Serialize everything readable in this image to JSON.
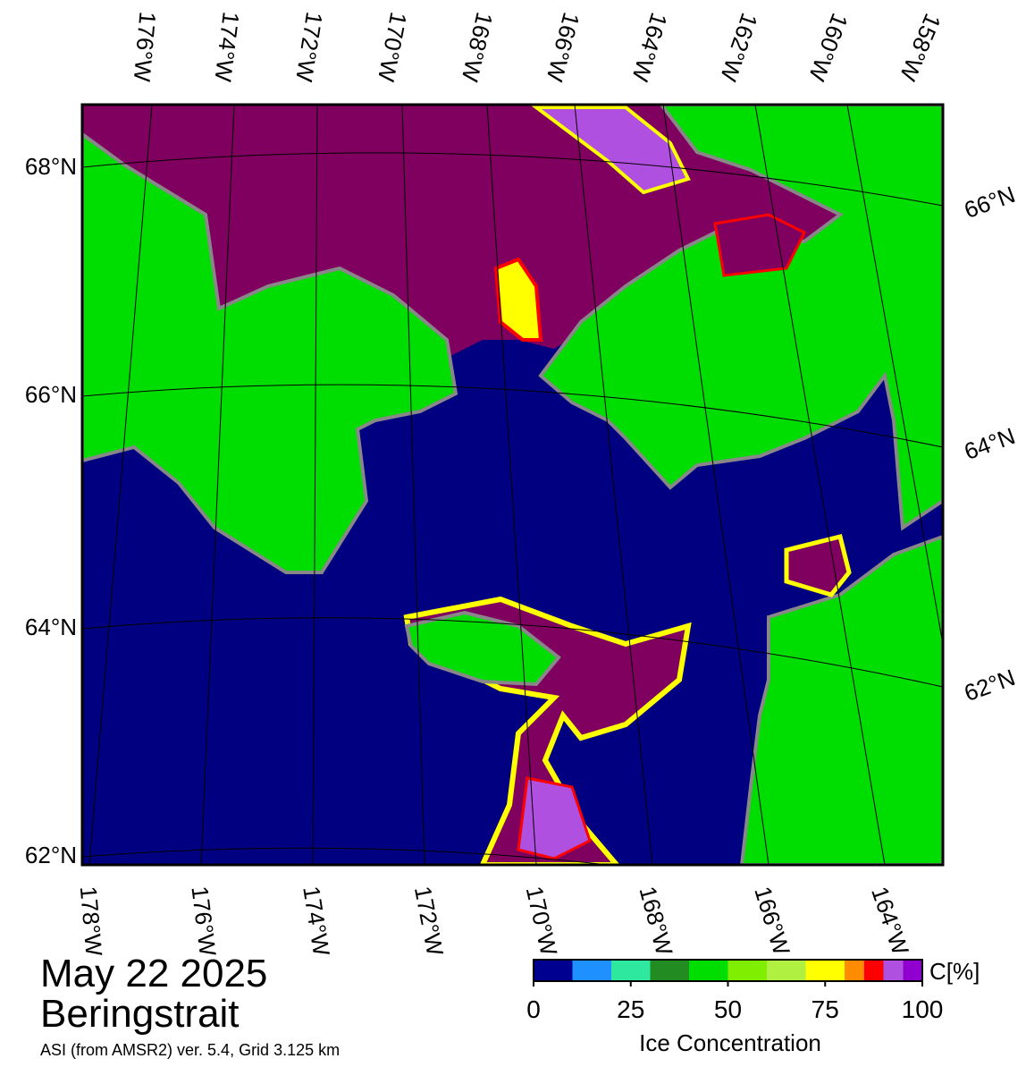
{
  "map": {
    "title": "May 22 2025",
    "region": "Beringstrait",
    "subtitle": "ASI (from AMSR2) ver. 5.4,  Grid 3.125 km",
    "top_lon_labels": [
      "176°W",
      "174°W",
      "172°W",
      "170°W",
      "168°W",
      "166°W",
      "164°W",
      "162°W",
      "160°W",
      "158°W"
    ],
    "bottom_lon_labels": [
      "178°W",
      "176°W",
      "174°W",
      "172°W",
      "170°W",
      "168°W",
      "166°W",
      "164°W"
    ],
    "left_lat_labels": [
      "68°N",
      "66°N",
      "64°N",
      "62°N"
    ],
    "right_lat_labels": [
      "66°N",
      "64°N",
      "62°N"
    ],
    "colorbar": {
      "label": "Ice Concentration",
      "unit": "C[%]",
      "range": [
        0,
        100
      ],
      "ticks": [
        0,
        25,
        50,
        75,
        100
      ],
      "bounds": [
        0,
        10,
        20,
        30,
        40,
        50,
        60,
        70,
        80,
        85,
        90,
        95,
        100
      ],
      "colors": [
        "#000090",
        "#1e90ff",
        "#2ee8a0",
        "#228b22",
        "#00dd00",
        "#7fee00",
        "#b0f040",
        "#ffff00",
        "#ff8c00",
        "#ff0000",
        "#b050e0",
        "#9000d0"
      ]
    }
  }
}
